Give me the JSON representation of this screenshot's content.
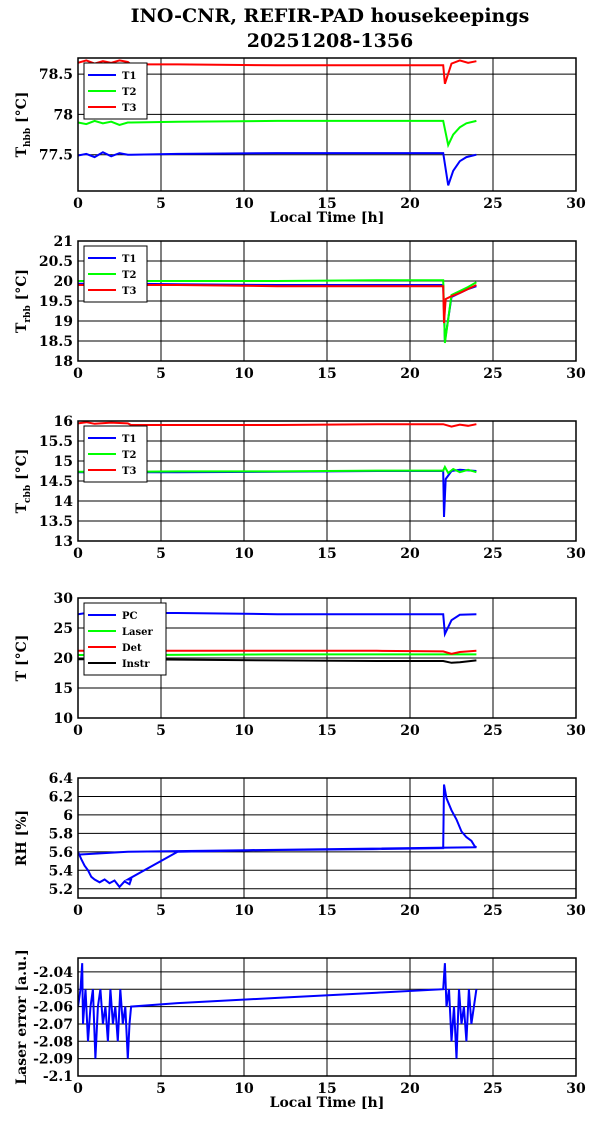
{
  "title_line1": "INO-CNR, REFIR-PAD housekeepings",
  "title_line2": "20251208-1356",
  "x_tick_labels": [
    "0",
    "5",
    "10",
    "15",
    "20",
    "25",
    "30"
  ],
  "colors": {
    "blue": "#0000ff",
    "green": "#00ff00",
    "red": "#ff0000",
    "black": "#000000"
  },
  "chart_data": [
    {
      "type": "line",
      "xlabel": "Local Time [h]",
      "ylabel": {
        "main": "T",
        "sub": "hbb",
        "unit": " [°C]"
      },
      "xlim": [
        0,
        30
      ],
      "ylim": [
        77.05,
        78.7
      ],
      "y_ticks": [
        77.5,
        78,
        78.5
      ],
      "y_tick_labels": [
        "77.5",
        "78",
        "78.5"
      ],
      "grid": true,
      "legend_position": "top-left",
      "series": [
        {
          "name": "T1",
          "color": "blue",
          "x": [
            0,
            0.5,
            1,
            1.5,
            2,
            2.5,
            3,
            3.2,
            6,
            12,
            18,
            22,
            22.3,
            22.6,
            23,
            23.4,
            24
          ],
          "y": [
            77.49,
            77.51,
            77.47,
            77.53,
            77.48,
            77.52,
            77.5,
            77.5,
            77.51,
            77.52,
            77.52,
            77.52,
            77.12,
            77.3,
            77.42,
            77.47,
            77.5
          ]
        },
        {
          "name": "T2",
          "color": "green",
          "x": [
            0,
            0.5,
            1,
            1.5,
            2,
            2.5,
            3,
            3.2,
            6,
            12,
            18,
            22,
            22.3,
            22.6,
            23,
            23.4,
            24
          ],
          "y": [
            77.9,
            77.88,
            77.92,
            77.89,
            77.91,
            77.87,
            77.9,
            77.9,
            77.91,
            77.92,
            77.92,
            77.92,
            77.62,
            77.75,
            77.84,
            77.89,
            77.92
          ]
        },
        {
          "name": "T3",
          "color": "red",
          "x": [
            0,
            0.5,
            1,
            1.5,
            2,
            2.5,
            3,
            3.2,
            6,
            12,
            18,
            22,
            22.1,
            22.5,
            23,
            23.5,
            24
          ],
          "y": [
            78.64,
            78.67,
            78.63,
            78.66,
            78.64,
            78.67,
            78.65,
            78.62,
            78.62,
            78.61,
            78.61,
            78.61,
            78.38,
            78.63,
            78.67,
            78.64,
            78.66
          ]
        }
      ]
    },
    {
      "type": "line",
      "xlabel": "",
      "ylabel": {
        "main": "T",
        "sub": "rbb",
        "unit": " [°C]"
      },
      "xlim": [
        0,
        30
      ],
      "ylim": [
        18,
        21
      ],
      "y_ticks": [
        18,
        18.5,
        19,
        19.5,
        20,
        20.5,
        21
      ],
      "y_tick_labels": [
        "18",
        "18.5",
        "19",
        "19.5",
        "20",
        "20.5",
        "21"
      ],
      "grid": true,
      "legend_position": "top-left",
      "series": [
        {
          "name": "T1",
          "color": "blue",
          "x": [
            0,
            3.2,
            6,
            12,
            18,
            22,
            22.1,
            22.5,
            23,
            23.5,
            24
          ],
          "y": [
            19.93,
            19.93,
            19.92,
            19.9,
            19.9,
            19.9,
            18.5,
            19.6,
            19.7,
            19.8,
            19.87
          ]
        },
        {
          "name": "T2",
          "color": "green",
          "x": [
            0,
            3.2,
            6,
            12,
            18,
            22,
            22.1,
            22.5,
            23,
            23.5,
            24
          ],
          "y": [
            20.0,
            20.0,
            20.0,
            20.0,
            20.02,
            20.02,
            18.45,
            19.65,
            19.75,
            19.85,
            19.97
          ]
        },
        {
          "name": "T3",
          "color": "red",
          "x": [
            0,
            3.2,
            6,
            12,
            18,
            22,
            22.05,
            22.15,
            22.5,
            23,
            23.5,
            24
          ],
          "y": [
            19.9,
            19.9,
            19.9,
            19.87,
            19.87,
            19.87,
            18.95,
            19.55,
            19.62,
            19.7,
            19.8,
            19.9
          ]
        }
      ]
    },
    {
      "type": "line",
      "xlabel": "",
      "ylabel": {
        "main": "T",
        "sub": "cbb",
        "unit": " [°C]"
      },
      "xlim": [
        0,
        30
      ],
      "ylim": [
        13,
        16
      ],
      "y_ticks": [
        13,
        13.5,
        14,
        14.5,
        15,
        15.5,
        16
      ],
      "y_tick_labels": [
        "13",
        "13.5",
        "14",
        "14.5",
        "15",
        "15.5",
        "16"
      ],
      "grid": true,
      "legend_position": "top-left",
      "series": [
        {
          "name": "T1",
          "color": "blue",
          "x": [
            0,
            3.2,
            6,
            12,
            18,
            22,
            22.05,
            22.15,
            22.5,
            23,
            24
          ],
          "y": [
            14.72,
            14.72,
            14.72,
            14.73,
            14.75,
            14.75,
            13.6,
            14.55,
            14.75,
            14.78,
            14.75
          ]
        },
        {
          "name": "T2",
          "color": "green",
          "x": [
            0,
            3.2,
            6,
            12,
            18,
            22,
            22.1,
            22.3,
            22.6,
            23,
            23.5,
            24
          ],
          "y": [
            14.73,
            14.73,
            14.74,
            14.74,
            14.76,
            14.76,
            14.85,
            14.7,
            14.8,
            14.72,
            14.78,
            14.72
          ]
        },
        {
          "name": "T3",
          "color": "red",
          "x": [
            0,
            0.5,
            1,
            2,
            3,
            3.2,
            6,
            12,
            18,
            22,
            22.5,
            23,
            23.5,
            24
          ],
          "y": [
            15.94,
            15.97,
            15.93,
            15.96,
            15.94,
            15.9,
            15.9,
            15.9,
            15.92,
            15.92,
            15.86,
            15.91,
            15.88,
            15.92
          ]
        }
      ]
    },
    {
      "type": "line",
      "xlabel": "",
      "ylabel": {
        "main": "T [°C]",
        "sub": "",
        "unit": ""
      },
      "xlim": [
        0,
        30
      ],
      "ylim": [
        10,
        30
      ],
      "y_ticks": [
        10,
        15,
        20,
        25,
        30
      ],
      "y_tick_labels": [
        "10",
        "15",
        "20",
        "25",
        "30"
      ],
      "grid": true,
      "legend_position": "top-left",
      "series": [
        {
          "name": "PC",
          "color": "blue",
          "x": [
            0,
            0.5,
            3.2,
            6,
            12,
            18,
            22,
            22.1,
            22.5,
            23,
            24
          ],
          "y": [
            27.3,
            27.5,
            27.5,
            27.5,
            27.3,
            27.3,
            27.3,
            24.0,
            26.3,
            27.2,
            27.3
          ]
        },
        {
          "name": "Laser",
          "color": "green",
          "x": [
            0,
            3.2,
            12,
            18,
            22,
            24
          ],
          "y": [
            20.5,
            20.5,
            20.6,
            20.6,
            20.6,
            20.6
          ]
        },
        {
          "name": "Det",
          "color": "red",
          "x": [
            0,
            3.2,
            12,
            18,
            22,
            22.5,
            23,
            24
          ],
          "y": [
            21.2,
            21.2,
            21.2,
            21.2,
            21.1,
            20.7,
            21.0,
            21.2
          ]
        },
        {
          "name": "Instr",
          "color": "black",
          "x": [
            0,
            3.2,
            12,
            18,
            22,
            22.5,
            23,
            24
          ],
          "y": [
            19.8,
            19.8,
            19.6,
            19.5,
            19.5,
            19.2,
            19.3,
            19.6
          ]
        }
      ]
    },
    {
      "type": "line",
      "xlabel": "",
      "ylabel": {
        "main": "RH [%]",
        "sub": "",
        "unit": ""
      },
      "xlim": [
        0,
        30
      ],
      "ylim": [
        5.1,
        6.4
      ],
      "y_ticks": [
        5.2,
        5.4,
        5.6,
        5.8,
        6,
        6.2,
        6.4
      ],
      "y_tick_labels": [
        "5.2",
        "5.4",
        "5.6",
        "5.8",
        "6",
        "6.2",
        "6.4"
      ],
      "grid": true,
      "legend_position": "none",
      "series": [
        {
          "name": "",
          "color": "blue",
          "x": [
            0,
            0.2,
            0.4,
            0.6,
            0.8,
            1.0,
            1.3,
            1.6,
            1.9,
            2.2,
            2.5,
            2.8,
            3.1,
            3.2,
            3.0,
            6,
            12,
            18,
            22,
            22.05,
            22.2,
            22.5,
            22.8,
            23.1,
            23.4,
            23.7,
            23.9,
            24,
            3.0,
            0
          ],
          "y": [
            5.6,
            5.52,
            5.45,
            5.4,
            5.33,
            5.3,
            5.27,
            5.3,
            5.26,
            5.29,
            5.22,
            5.28,
            5.25,
            5.3,
            5.3,
            5.6,
            5.62,
            5.63,
            5.64,
            6.33,
            6.18,
            6.05,
            5.95,
            5.82,
            5.76,
            5.72,
            5.66,
            5.65,
            5.6,
            5.57
          ]
        }
      ]
    },
    {
      "type": "line",
      "xlabel": "Local Time [h]",
      "ylabel": {
        "main": "Laser error [a.u.]",
        "sub": "",
        "unit": ""
      },
      "xlim": [
        0,
        30
      ],
      "ylim": [
        -2.1,
        -2.032
      ],
      "y_ticks": [
        -2.1,
        -2.09,
        -2.08,
        -2.07,
        -2.06,
        -2.05,
        -2.04
      ],
      "y_tick_labels": [
        "-2.1",
        "-2.09",
        "-2.08",
        "-2.07",
        "-2.06",
        "-2.05",
        "-2.04"
      ],
      "grid": true,
      "legend_position": "none",
      "series": [
        {
          "name": "",
          "color": "blue",
          "x": [
            0,
            0.15,
            0.25,
            0.3,
            0.45,
            0.6,
            0.75,
            0.9,
            1.05,
            1.2,
            1.35,
            1.5,
            1.65,
            1.8,
            1.95,
            2.1,
            2.25,
            2.4,
            2.55,
            2.7,
            2.85,
            3.0,
            3.1,
            3.2,
            6,
            12,
            18,
            22,
            22.1,
            22.2,
            22.35,
            22.5,
            22.65,
            22.8,
            22.95,
            23.1,
            23.25,
            23.4,
            23.55,
            23.7,
            23.85,
            24
          ],
          "y": [
            -2.06,
            -2.05,
            -2.035,
            -2.07,
            -2.05,
            -2.08,
            -2.06,
            -2.05,
            -2.09,
            -2.06,
            -2.05,
            -2.07,
            -2.06,
            -2.08,
            -2.05,
            -2.07,
            -2.06,
            -2.08,
            -2.05,
            -2.07,
            -2.06,
            -2.09,
            -2.07,
            -2.06,
            -2.058,
            -2.055,
            -2.052,
            -2.05,
            -2.035,
            -2.06,
            -2.05,
            -2.08,
            -2.06,
            -2.09,
            -2.05,
            -2.07,
            -2.06,
            -2.08,
            -2.05,
            -2.07,
            -2.06,
            -2.05
          ]
        }
      ]
    }
  ]
}
